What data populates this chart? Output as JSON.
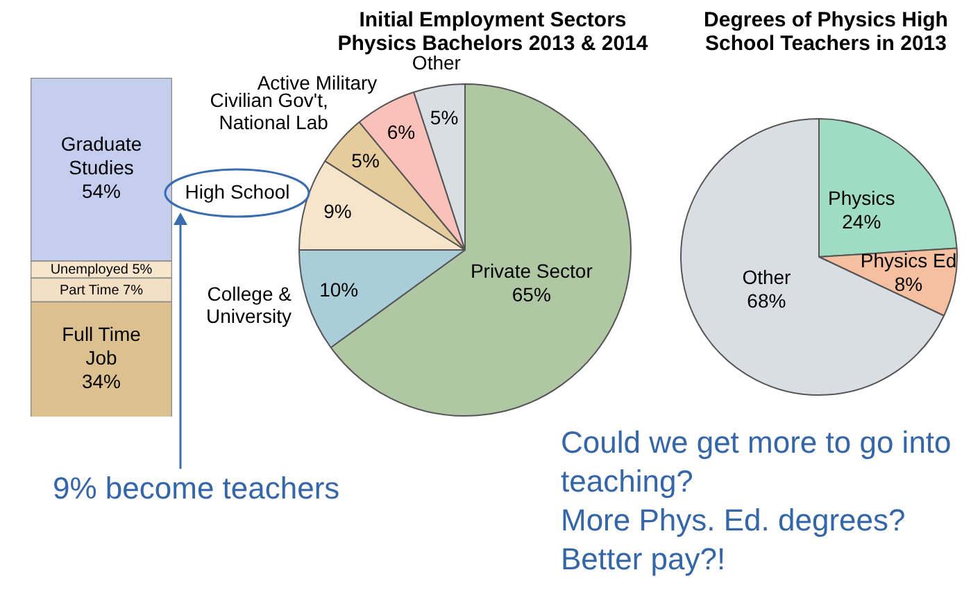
{
  "chart_data": [
    {
      "type": "bar",
      "stacked": true,
      "categories": [
        null
      ],
      "legend": false,
      "series": [
        {
          "name": "Full Time Job",
          "color": "#dcc08f",
          "values": [
            34
          ],
          "value_labels": [
            "34%"
          ]
        },
        {
          "name": "Part Time",
          "color": "#f3dfc3",
          "values": [
            7
          ],
          "value_labels": [
            "7%"
          ]
        },
        {
          "name": "Unemployed",
          "color": "#f7e6cc",
          "values": [
            5
          ],
          "value_labels": [
            "5%"
          ]
        },
        {
          "name": "Graduate Studies",
          "color": "#c6cef0",
          "values": [
            54
          ],
          "value_labels": [
            "54%"
          ]
        }
      ]
    },
    {
      "type": "pie",
      "title": "Initial Employment Sectors Physics Bachelors 2013 & 2014",
      "legend": false,
      "categories": [
        "Private Sector",
        "College & University",
        "High School",
        "Civilian Gov't, National Lab",
        "Active Military",
        "Other"
      ],
      "values": [
        65,
        10,
        9,
        5,
        6,
        5
      ],
      "value_labels": [
        "65%",
        "10%",
        "9%",
        "5%",
        "6%",
        "5%"
      ],
      "colors": [
        "#afc8a3",
        "#a9cdd9",
        "#f6e5cb",
        "#e6cb9d",
        "#f9c1ba",
        "#d9dee4"
      ],
      "annotations": [
        "9% become teachers"
      ]
    },
    {
      "type": "pie",
      "title": "Degrees of Physics High School Teachers in 2013",
      "legend": false,
      "categories": [
        "Physics",
        "Physics Ed",
        "Other"
      ],
      "values": [
        24,
        8,
        68
      ],
      "value_labels": [
        "24%",
        "8%",
        "68%"
      ],
      "colors": [
        "#9fdcc4",
        "#f6c0a0",
        "#d9dee4"
      ],
      "annotations": [
        "Could we get more to go into teaching?",
        "More Phys. Ed. degrees?",
        "Better pay?!"
      ]
    }
  ]
}
